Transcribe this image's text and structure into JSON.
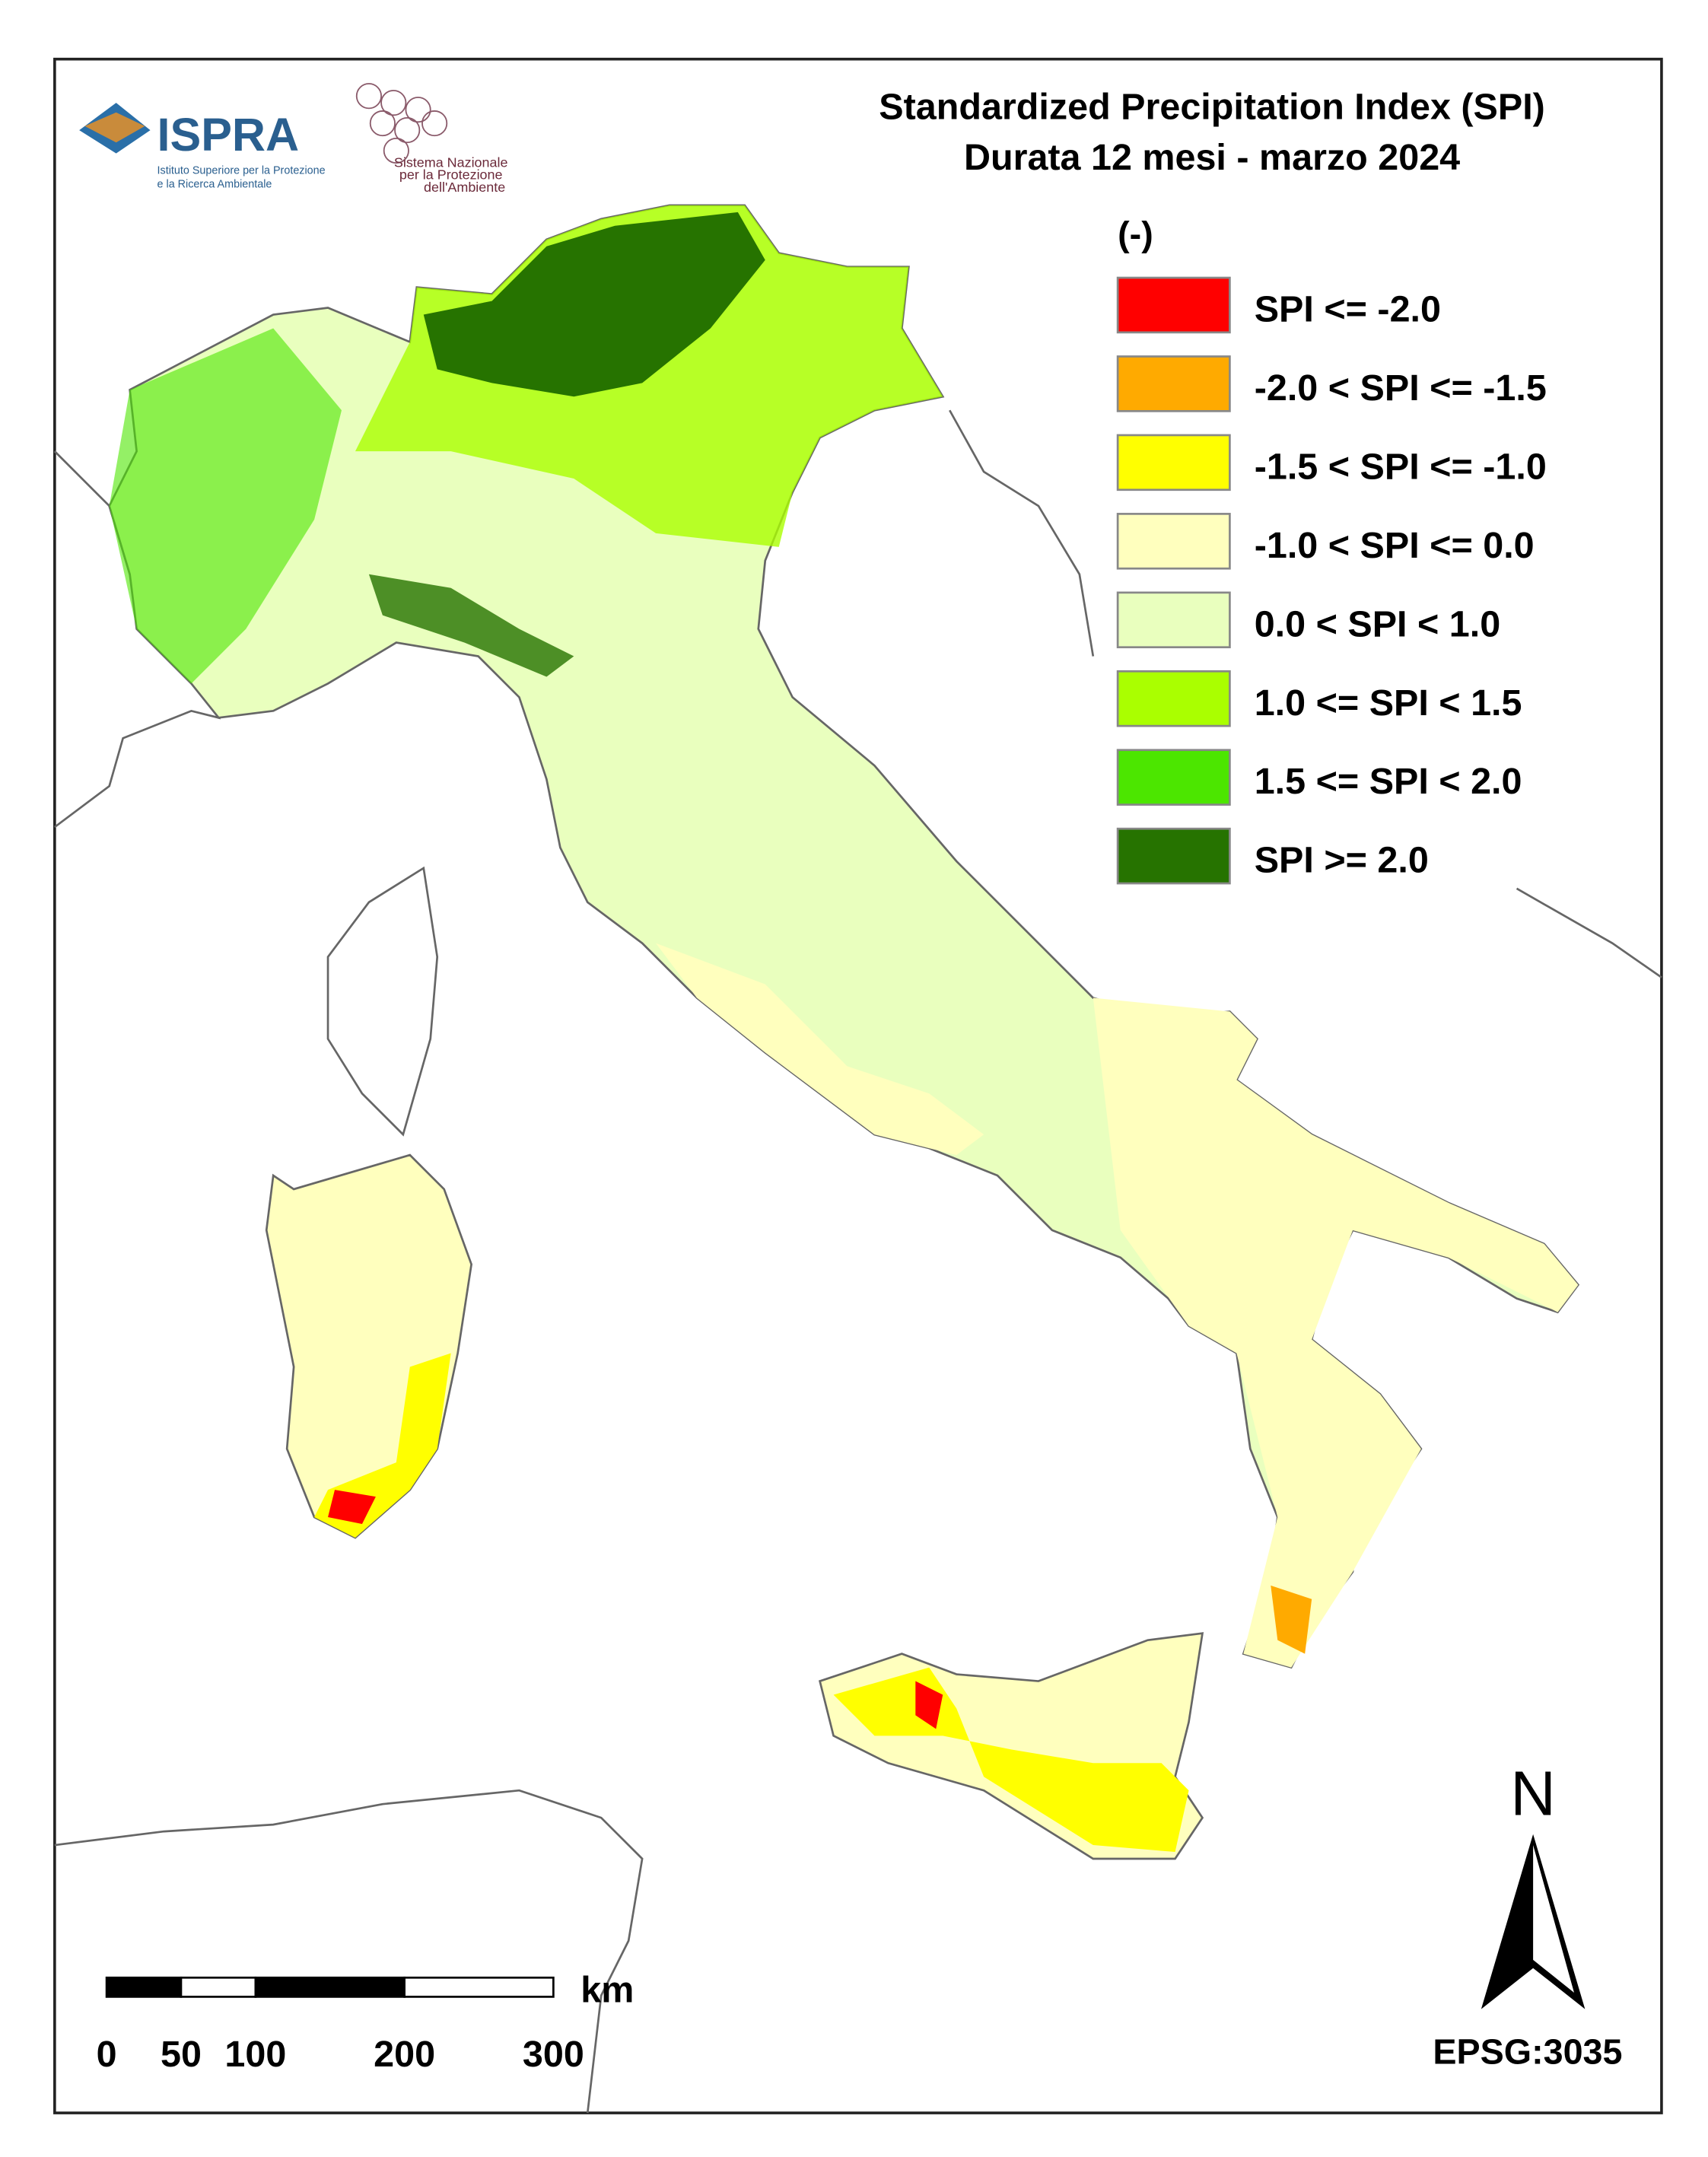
{
  "header": {
    "title_lines": [
      "Standardized Precipitation  Index (SPI)",
      "Durata 12 mesi - marzo 2024"
    ]
  },
  "logos": {
    "ispra": "ISPRA",
    "ispra_sub": [
      "Istituto Superiore per la Protezione",
      "e la Ricerca Ambientale"
    ],
    "snpa": [
      "Sistema Nazionale",
      "per la Protezione",
      "dell'Ambiente"
    ]
  },
  "legend": {
    "unit": "(-)",
    "items": [
      {
        "label": "SPI <= -2.0",
        "color": "#ff0000"
      },
      {
        "label": "-2.0 < SPI <= -1.5",
        "color": "#ffaa00"
      },
      {
        "label": "-1.5 < SPI <= -1.0",
        "color": "#ffff00"
      },
      {
        "label": "-1.0 < SPI <= 0.0",
        "color": "#ffffbe"
      },
      {
        "label": "0.0 < SPI < 1.0",
        "color": "#e9ffbe"
      },
      {
        "label": "1.0 <= SPI < 1.5",
        "color": "#aaff00"
      },
      {
        "label": "1.5 <= SPI < 2.0",
        "color": "#4ce600"
      },
      {
        "label": "SPI >= 2.0",
        "color": "#267300"
      }
    ]
  },
  "scale_bar": {
    "unit": "km",
    "ticks": [
      0,
      50,
      100,
      200,
      300
    ]
  },
  "north": "N",
  "crs": "EPSG:3035"
}
